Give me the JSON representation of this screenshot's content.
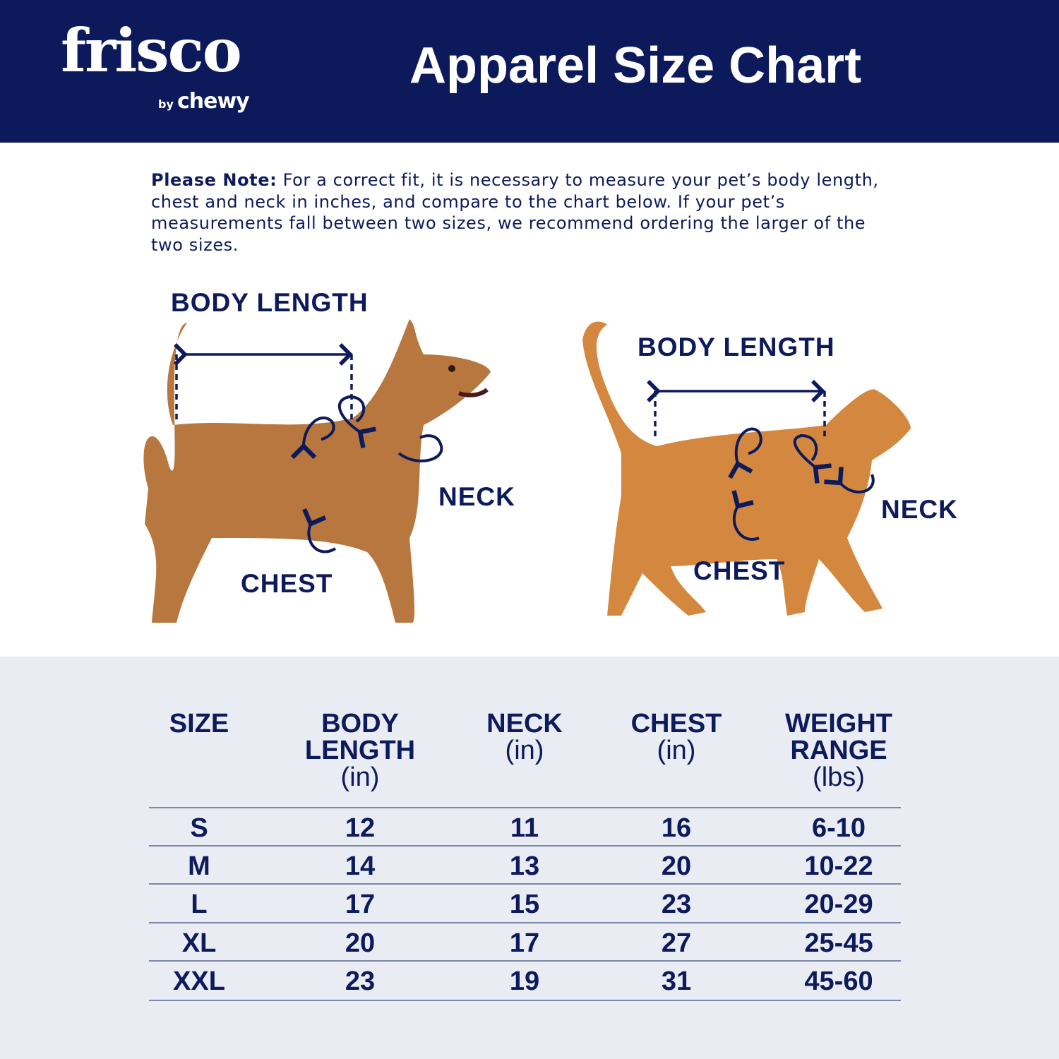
{
  "header": {
    "logo": {
      "main": "frisco",
      "by": "by",
      "brand": "chewy"
    },
    "title": "Apparel Size Chart"
  },
  "note": {
    "label": "Please Note:",
    "text": "For a correct fit, it is necessary to measure your pet’s body length, chest and neck in inches, and compare to the chart below. If your pet’s measurements fall between two sizes, we recommend ordering the larger of the two sizes."
  },
  "dog": {
    "body_length": "BODY LENGTH",
    "neck": "NECK",
    "chest": "CHEST"
  },
  "cat": {
    "body_length": "BODY LENGTH",
    "neck": "NECK",
    "chest": "CHEST"
  },
  "colors": {
    "navy": "#0c1a5c",
    "table_bg": "#e9ecf2",
    "text": "#0d1a5b"
  },
  "table": {
    "headers": [
      {
        "title": "SIZE",
        "unit": ""
      },
      {
        "title": "BODY LENGTH",
        "unit": "(in)"
      },
      {
        "title": "NECK",
        "unit": "(in)"
      },
      {
        "title": "CHEST",
        "unit": "(in)"
      },
      {
        "title": "WEIGHT RANGE",
        "unit": "(lbs)"
      }
    ],
    "rows": [
      [
        "S",
        "12",
        "11",
        "16",
        "6-10"
      ],
      [
        "M",
        "14",
        "13",
        "20",
        "10-22"
      ],
      [
        "L",
        "17",
        "15",
        "23",
        "20-29"
      ],
      [
        "XL",
        "20",
        "17",
        "27",
        "25-45"
      ],
      [
        "XXL",
        "23",
        "19",
        "31",
        "45-60"
      ]
    ]
  }
}
